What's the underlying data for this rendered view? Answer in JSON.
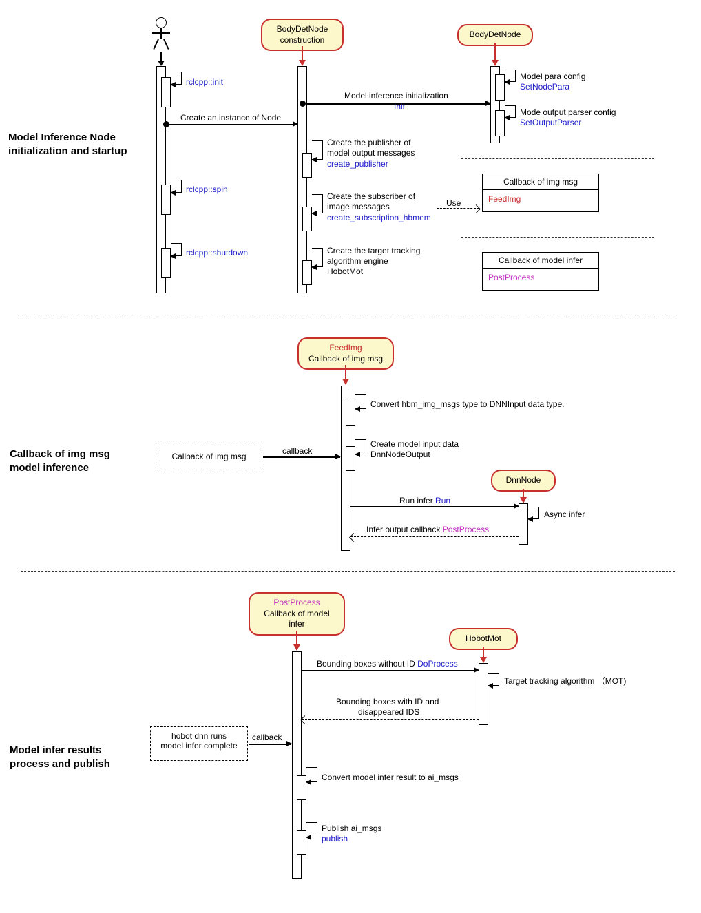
{
  "colors": {
    "node_fill": "#fdf8cc",
    "node_border": "#c8302e",
    "blue": "#2020cc",
    "red": "#c8302e",
    "magenta": "#c030c0",
    "background": "#ffffff"
  },
  "sections": {
    "s1": {
      "title": "Model Inference Node\ninitialization and startup"
    },
    "s2": {
      "title": "Callback of img msg\nmodel inference"
    },
    "s3": {
      "title": "Model infer results\nprocess and publish"
    }
  },
  "nodes": {
    "body_det_construction": {
      "line1": "BodyDetNode",
      "line2": "construction"
    },
    "body_det_node": "BodyDetNode",
    "feedimg": {
      "line1": "FeedImg",
      "line2": "Callback of img msg"
    },
    "dnn_node": "DnnNode",
    "postprocess": {
      "line1": "PostProcess",
      "line2": "Callback of model",
      "line3": "infer"
    },
    "hobot_mot": "HobotMot"
  },
  "labels": {
    "rclcpp_init": "rclcpp::init",
    "rclcpp_spin": "rclcpp::spin",
    "rclcpp_shutdown": "rclcpp::shutdown",
    "create_instance": "Create an instance of Node",
    "model_init_l1": "Model inference initialization",
    "init": "Init",
    "model_para": "Model para config",
    "set_node_para": "SetNodePara",
    "mode_output": "Mode output parser config",
    "set_output_parser": "SetOutputParser",
    "create_pub_l1": "Create the publisher of",
    "create_pub_l2": "model output messages",
    "create_publisher": "create_publisher",
    "create_sub_l1": "Create the subscriber of",
    "create_sub_l2": "image messages",
    "create_subscription": "create_subscription_hbmem",
    "use": "Use",
    "callback_img_box_title": "Callback of img msg",
    "feedimg_txt": "FeedImg",
    "callback_model_box_title": "Callback of model infer",
    "postprocess_txt": "PostProcess",
    "create_target_l1": "Create the target tracking",
    "create_target_l2": "algorithm engine",
    "create_target_l3": "HobotMot",
    "callback_box2": "Callback of img msg",
    "callback": "callback",
    "convert_hbm": "Convert hbm_img_msgs type to DNNInput data type.",
    "create_model_input_l1": "Create model input data",
    "create_model_input_l2": "DnnNodeOutput",
    "run_infer": "Run infer",
    "run": "Run",
    "async_infer": "Async infer",
    "infer_output": "Infer output callback",
    "postprocess_lbl": "PostProcess",
    "hobot_dnn_l1": "hobot dnn runs",
    "hobot_dnn_l2": "model infer complete",
    "bbox_without": "Bounding boxes without ID",
    "do_process": "DoProcess",
    "bbox_with_l1": "Bounding boxes with ID and",
    "bbox_with_l2": "disappeared IDS",
    "target_tracking": "Target tracking algorithm （MOT)",
    "convert_result": "Convert model infer result to ai_msgs",
    "publish_aimsg": "Publish ai_msgs",
    "publish": "publish"
  }
}
